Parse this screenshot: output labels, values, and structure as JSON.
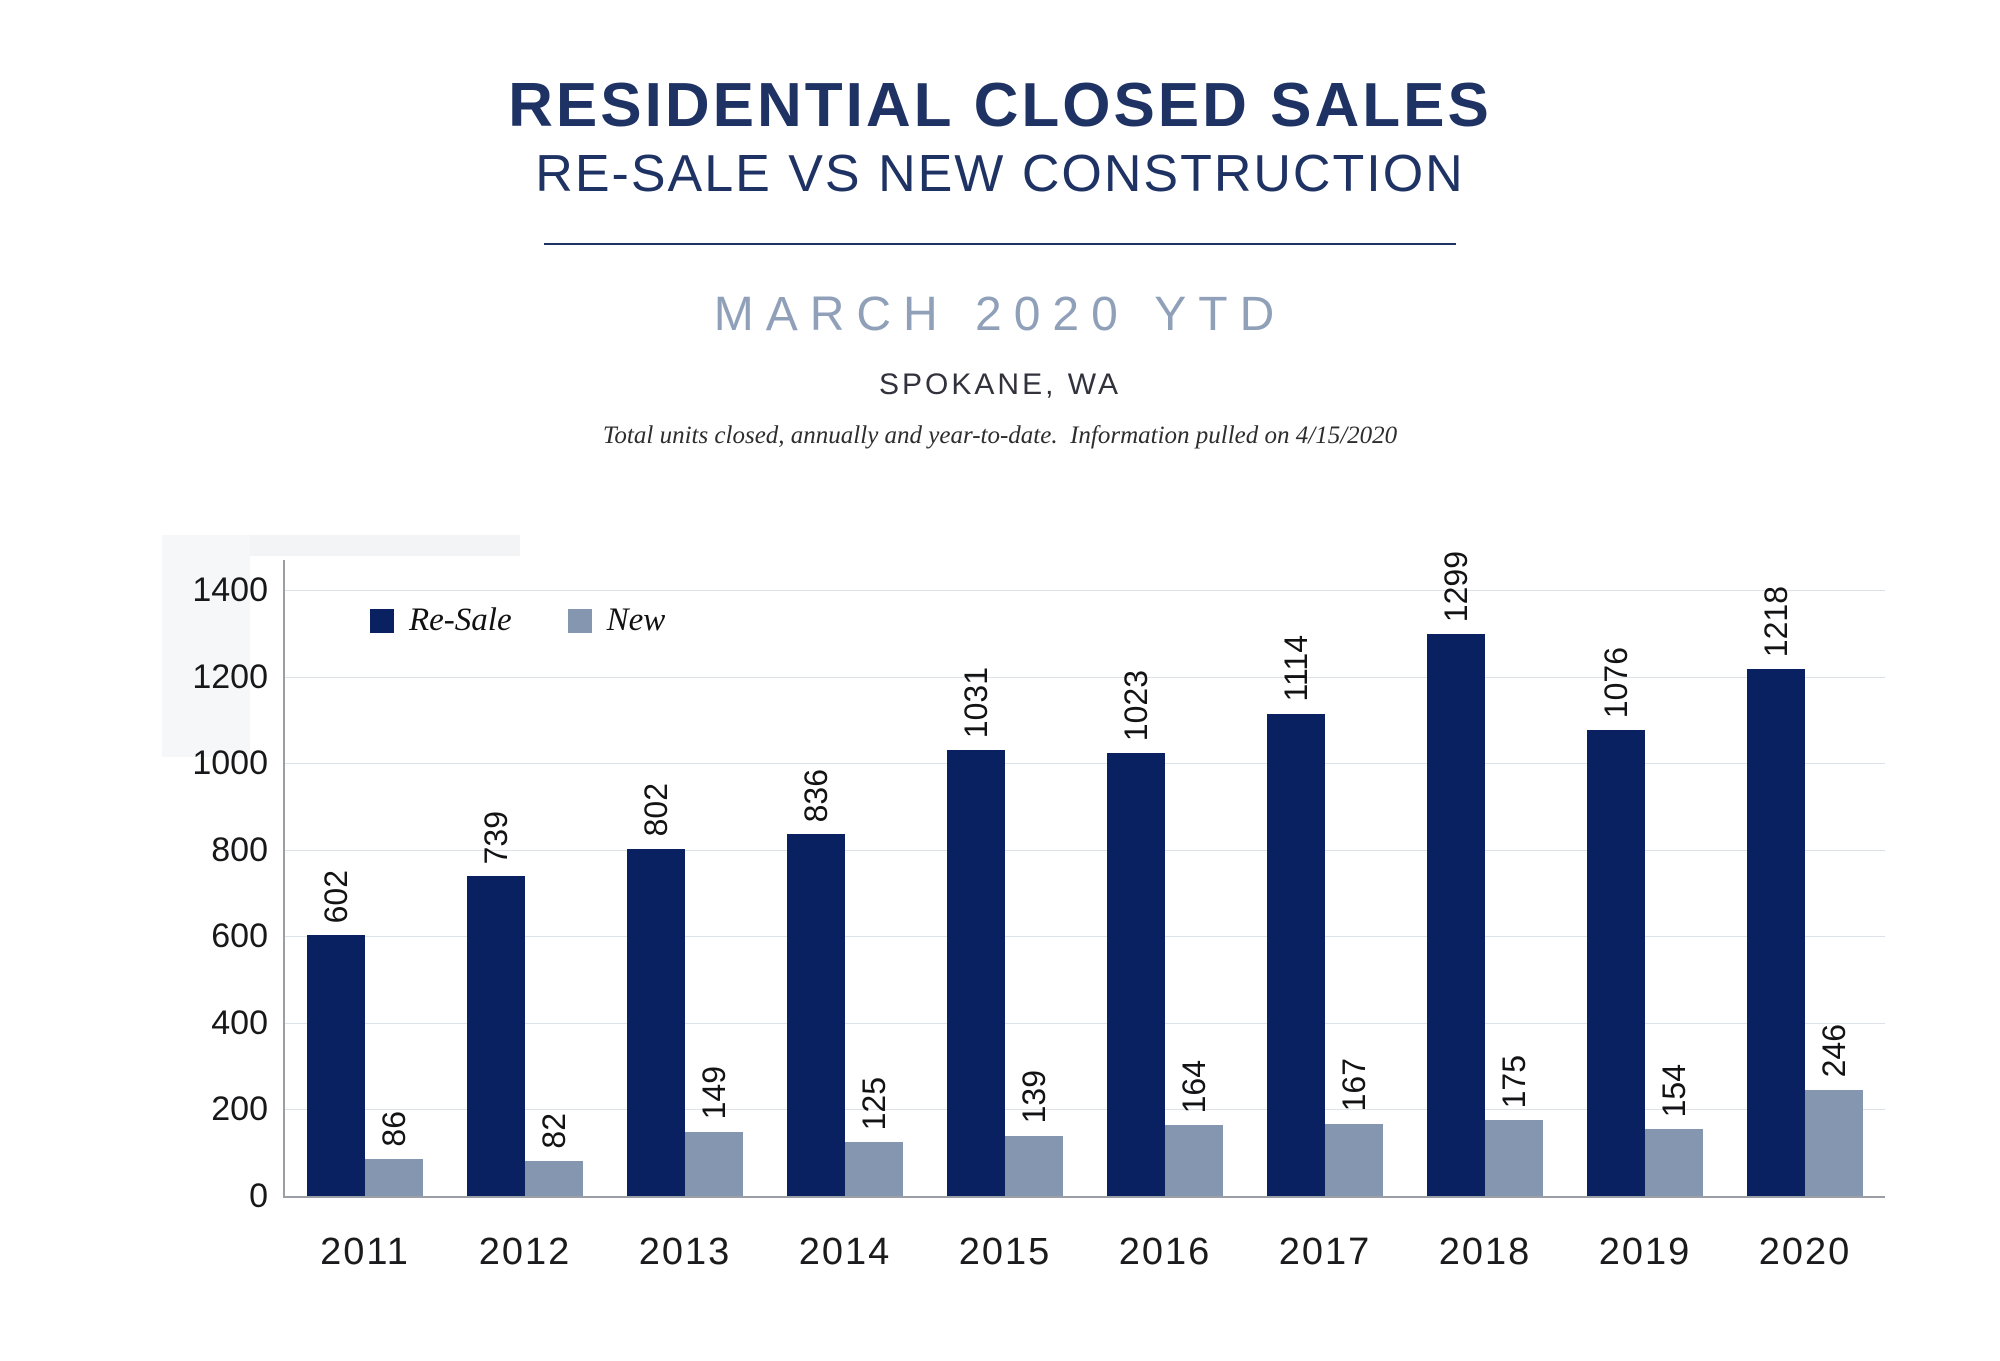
{
  "header": {
    "title": "RESIDENTIAL CLOSED SALES",
    "subtitle": "RE-SALE VS NEW CONSTRUCTION",
    "period": "MARCH 2020 YTD",
    "location": "SPOKANE, WA",
    "note": "Total units closed, annually and year-to-date.  Information pulled on 4/15/2020"
  },
  "colors": {
    "title_navy": "#1e3264",
    "period_gray_blue": "#8fa0b8",
    "resale_bar": "#0a2161",
    "new_bar": "#8496b0",
    "gridline": "#dde1e8",
    "axis_line": "#9b9ea5",
    "label_text": "#18181a",
    "panel_shade": "#f3f4f6"
  },
  "chart_data": {
    "type": "bar",
    "title": "RESIDENTIAL CLOSED SALES — RE-SALE VS NEW CONSTRUCTION",
    "categories": [
      "2011",
      "2012",
      "2013",
      "2014",
      "2015",
      "2016",
      "2017",
      "2018",
      "2019",
      "2020"
    ],
    "series": [
      {
        "name": "Re-Sale",
        "color": "#0a2161",
        "values": [
          602,
          739,
          802,
          836,
          1031,
          1023,
          1114,
          1299,
          1076,
          1218
        ]
      },
      {
        "name": "New",
        "color": "#8496b0",
        "values": [
          86,
          82,
          149,
          125,
          139,
          164,
          167,
          175,
          154,
          246
        ]
      }
    ],
    "xlabel": "",
    "ylabel": "",
    "ylim": [
      0,
      1400
    ],
    "ytick_step": 200,
    "yticks": [
      0,
      200,
      400,
      600,
      800,
      1000,
      1200,
      1400
    ],
    "grid": true,
    "legend_position": "top-left",
    "value_labels": "rotated -90 above bars"
  }
}
